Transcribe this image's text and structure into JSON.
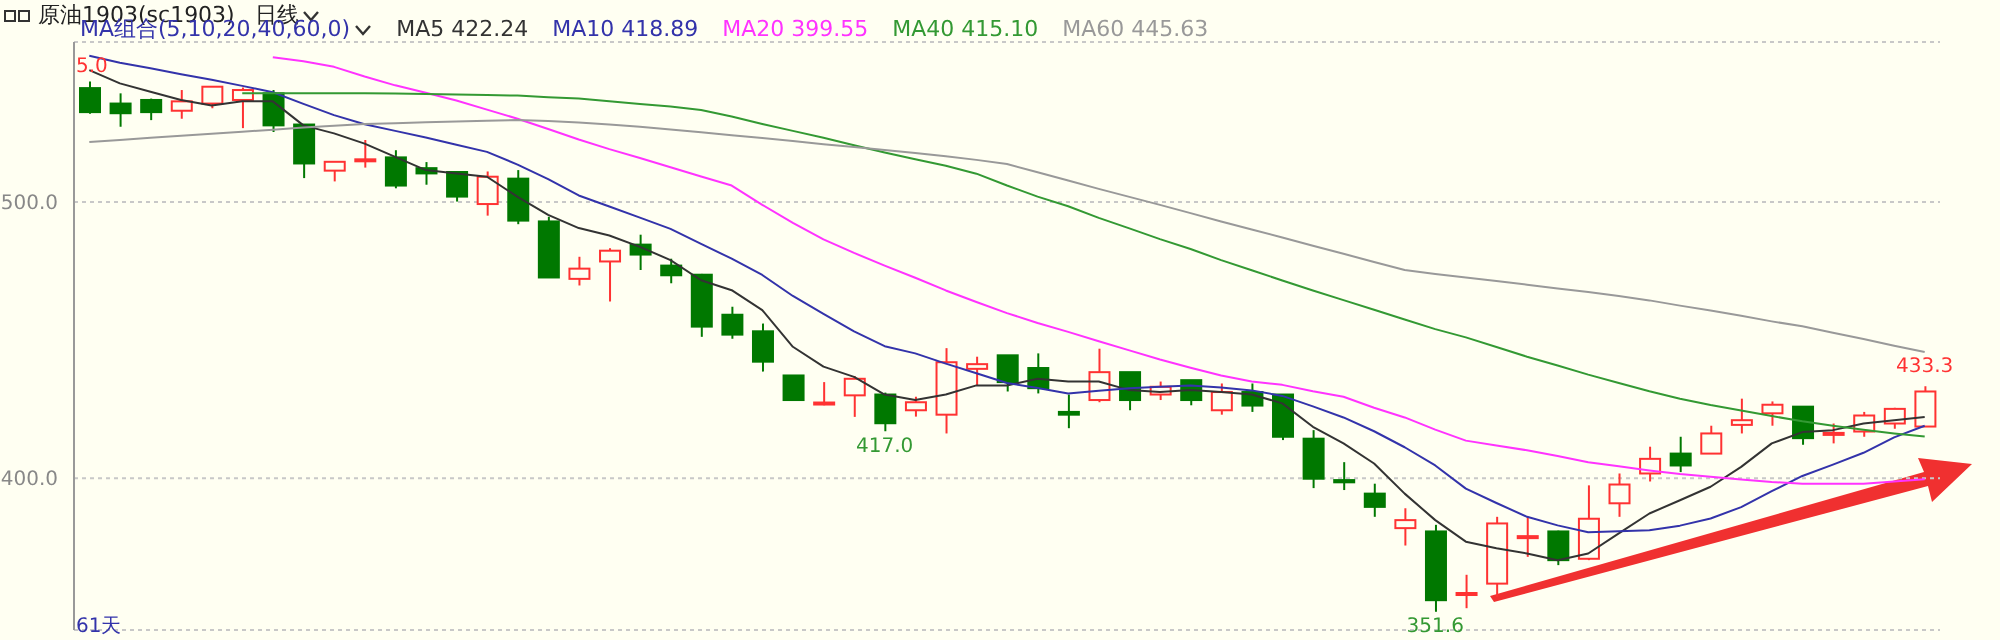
{
  "chart_data": {
    "type": "candlestick",
    "title": "原油1903(sc1903)",
    "subtitle": "日线",
    "legend_title": "MA组合(5,10,20,40,60,0)",
    "categories": [
      null,
      null,
      null,
      null,
      null,
      null,
      null,
      null,
      null,
      null,
      null,
      null,
      null,
      null,
      null,
      null,
      null,
      null,
      null,
      null,
      null,
      null,
      null,
      null,
      null,
      null,
      null,
      null,
      null,
      null,
      null,
      null,
      null,
      null,
      null,
      null,
      null,
      null,
      null,
      null,
      null,
      null,
      null,
      null,
      null,
      null,
      null,
      null,
      null,
      null,
      null,
      null,
      null,
      null,
      null,
      null,
      null,
      null,
      null,
      null,
      null
    ],
    "ohlc": [
      [
        541.3,
        543.7,
        532,
        532.6
      ],
      [
        535.7,
        539.4,
        527.3,
        532.2
      ],
      [
        537,
        537.5,
        529.7,
        532.6
      ],
      [
        533.1,
        540.6,
        530.2,
        536.5
      ],
      [
        535.7,
        542,
        534,
        541.8
      ],
      [
        537,
        541.5,
        526.8,
        540.6
      ],
      [
        539.4,
        540.6,
        525.4,
        527.8
      ],
      [
        528.1,
        528.1,
        508.7,
        514
      ],
      [
        511.4,
        514.6,
        507.5,
        514.6
      ],
      [
        515,
        522.5,
        512.5,
        515.5
      ],
      [
        516.2,
        518.8,
        505,
        506
      ],
      [
        512.3,
        514.5,
        506.3,
        510.4
      ],
      [
        510.9,
        511,
        500.2,
        502
      ],
      [
        499.3,
        511.1,
        495.1,
        509.2
      ],
      [
        508.5,
        511.6,
        492,
        493.3
      ],
      [
        493,
        494.7,
        472.7,
        472.7
      ],
      [
        472.2,
        480.2,
        469.8,
        475.9
      ],
      [
        478.5,
        483.3,
        464,
        482.4
      ],
      [
        484.6,
        488.2,
        475.4,
        481
      ],
      [
        477,
        479.5,
        470.6,
        473.5
      ],
      [
        473.7,
        474,
        451.2,
        454.9
      ],
      [
        459.2,
        462.1,
        450.5,
        452
      ],
      [
        453.2,
        456,
        438.6,
        442.2
      ],
      [
        437.2,
        437.2,
        428.3,
        428.3
      ],
      [
        427.2,
        434.8,
        426.4,
        427.4
      ],
      [
        430,
        437,
        422.2,
        436
      ],
      [
        430.3,
        431,
        417,
        419.9
      ],
      [
        424.6,
        429.5,
        422.3,
        427.5
      ],
      [
        423,
        447.1,
        416.2,
        442
      ],
      [
        439.6,
        444,
        433.6,
        441.3
      ],
      [
        444.5,
        444.5,
        431.4,
        434.8
      ],
      [
        439.9,
        445.2,
        430.7,
        432.6
      ],
      [
        424,
        430.3,
        418.1,
        423
      ],
      [
        428.3,
        446.9,
        427.5,
        438.4
      ],
      [
        438.4,
        438.4,
        424.6,
        428.3
      ],
      [
        430.3,
        435,
        428.3,
        433.1
      ],
      [
        435.5,
        435.5,
        426.4,
        428.3
      ],
      [
        424.6,
        434.3,
        423,
        431.2
      ],
      [
        431.2,
        434.3,
        424,
        426.3
      ],
      [
        430.3,
        430.3,
        413.8,
        415
      ],
      [
        414.3,
        417.4,
        396.4,
        399.8
      ],
      [
        399.3,
        405.8,
        395.7,
        398.5
      ],
      [
        394.4,
        398,
        386,
        389.6
      ],
      [
        381.9,
        389.1,
        375.6,
        384.8
      ],
      [
        380.7,
        383.1,
        351.6,
        355.8
      ],
      [
        358,
        365,
        352.9,
        358.4
      ],
      [
        361.8,
        386,
        357,
        383.6
      ],
      [
        378.6,
        386,
        371.5,
        379
      ],
      [
        380.7,
        381,
        368.5,
        370.3
      ],
      [
        370.8,
        397.4,
        370.3,
        385.3
      ],
      [
        390.9,
        401.7,
        386,
        397.7
      ],
      [
        401.7,
        411.4,
        398.8,
        407
      ],
      [
        408.9,
        415,
        402.2,
        404.6
      ],
      [
        408.9,
        419,
        408.9,
        416.2
      ],
      [
        419.3,
        428.8,
        416.2,
        421
      ],
      [
        423.5,
        427.8,
        419,
        426.6
      ],
      [
        425.9,
        426,
        412.1,
        414.5
      ],
      [
        416,
        419.8,
        412.6,
        416.4
      ],
      [
        416.9,
        424,
        415,
        422.7
      ],
      [
        419.8,
        425.5,
        417.9,
        425.1
      ],
      [
        418.7,
        433.3,
        418.7,
        431.4
      ]
    ],
    "colors": [
      "#007800",
      "#007800",
      "#007800",
      "#ff3232",
      "#ff3232",
      "#ff3232",
      "#007800",
      "#007800",
      "#ff3232",
      "#ff3232",
      "#007800",
      "#007800",
      "#007800",
      "#ff3232",
      "#007800",
      "#007800",
      "#ff3232",
      "#ff3232",
      "#007800",
      "#007800",
      "#007800",
      "#007800",
      "#007800",
      "#007800",
      "#ff3232",
      "#ff3232",
      "#007800",
      "#ff3232",
      "#ff3232",
      "#ff3232",
      "#007800",
      "#007800",
      "#007800",
      "#ff3232",
      "#007800",
      "#ff3232",
      "#007800",
      "#ff3232",
      "#007800",
      "#007800",
      "#007800",
      "#007800",
      "#007800",
      "#ff3232",
      "#007800",
      "#ff3232",
      "#ff3232",
      "#ff3232",
      "#007800",
      "#ff3232",
      "#ff3232",
      "#ff3232",
      "#007800",
      "#ff3232",
      "#ff3232",
      "#ff3232",
      "#007800",
      "#ff3232",
      "#ff3232",
      "#ff3232",
      "#ff3232"
    ],
    "series": [
      {
        "type": "line",
        "name": "MA5 422.24",
        "color": "#333333",
        "values": [
          547.8,
          543,
          540,
          537,
          535,
          536.5,
          536.5,
          527.8,
          524.9,
          521.2,
          516.4,
          511.6,
          510.4,
          509.2,
          501.9,
          495.4,
          490.6,
          487.9,
          483.8,
          479,
          471.7,
          468.1,
          460.9,
          447.6,
          440.4,
          436.7,
          430.3,
          428.3,
          430.3,
          433.6,
          433.6,
          436,
          435,
          435,
          431.9,
          431.2,
          431.9,
          431.2,
          430.3,
          427.1,
          418.6,
          412.6,
          405.3,
          394.4,
          384.8,
          377,
          374.6,
          372.7,
          370.3,
          372.7,
          380,
          387.2,
          392,
          396.9,
          404.1,
          412.6,
          416.7,
          417.4,
          419.8,
          421,
          422.2
        ]
      },
      {
        "type": "line",
        "name": "MA10 418.89",
        "color": "#3333aa",
        "values": [
          553,
          550.5,
          548.5,
          546.3,
          544.3,
          542.1,
          539.8,
          535.6,
          531.5,
          528.2,
          525.8,
          523.4,
          520.8,
          518.2,
          513.6,
          508.3,
          502.4,
          498.4,
          494.4,
          490.3,
          484.9,
          479.5,
          473.6,
          466,
          459.5,
          453.2,
          447.8,
          445.2,
          441.5,
          438,
          434.5,
          432.7,
          430.7,
          431.7,
          432.6,
          433.1,
          433.6,
          432.8,
          431.8,
          429.8,
          426,
          422,
          417,
          411.2,
          404.6,
          396.2,
          391,
          386,
          382.9,
          380.4,
          380.8,
          381.1,
          382.8,
          385.4,
          389.5,
          395.3,
          400.8,
          404.9,
          409.2,
          414.8,
          419
        ]
      },
      {
        "type": "line",
        "name": "MA20 399.55",
        "color": "#ff33ff",
        "values": [
          null,
          null,
          null,
          null,
          null,
          null,
          552.5,
          551,
          549,
          545.5,
          542.3,
          539.6,
          536.8,
          533.5,
          530.2,
          526.5,
          522.7,
          519.2,
          516,
          512.6,
          509.3,
          506,
          499,
          492.5,
          486.5,
          481.6,
          477,
          472.6,
          468,
          463.8,
          459.8,
          456.2,
          453,
          449.6,
          446.3,
          443,
          440,
          437.2,
          435,
          433.8,
          431.5,
          429.5,
          425.5,
          422,
          417.6,
          413.6,
          411.8,
          410.1,
          408,
          405.8,
          404.3,
          402.8,
          401.5,
          400.5,
          399.5,
          398.6,
          398,
          398,
          398,
          398.8,
          399.6
        ]
      },
      {
        "type": "line",
        "name": "MA40 415.10",
        "color": "#339933",
        "values": [
          null,
          null,
          null,
          null,
          null,
          539.4,
          539.4,
          539.4,
          539.4,
          539.4,
          539.3,
          539.2,
          539,
          538.8,
          538.6,
          538,
          537.5,
          536.5,
          535.5,
          534.6,
          533.4,
          531,
          528.3,
          525.8,
          523.3,
          520.6,
          518,
          515.5,
          513.2,
          510.3,
          506,
          502,
          498.5,
          494.3,
          490.5,
          486.6,
          483,
          479,
          475.3,
          471.6,
          468,
          464.5,
          461,
          457.5,
          454,
          451,
          447.5,
          444,
          440.8,
          437.5,
          434.5,
          431.5,
          428.8,
          426.5,
          424.5,
          422.5,
          420.6,
          419,
          417.5,
          416.2,
          415.1
        ]
      },
      {
        "type": "line",
        "name": "MA60 445.63",
        "color": "#999999",
        "values": [
          521.8,
          522.5,
          523.3,
          524,
          524.8,
          525.5,
          526.2,
          527,
          527.7,
          528.3,
          528.6,
          528.9,
          529.2,
          529.5,
          529.7,
          529.4,
          528.8,
          528.1,
          527.3,
          526.3,
          525.3,
          524.2,
          523.2,
          522.1,
          521,
          520,
          518.9,
          517.8,
          516.6,
          515.3,
          513.8,
          510.8,
          507.8,
          504.8,
          501.9,
          499,
          496,
          493,
          490.1,
          487.2,
          484.2,
          481.3,
          478.3,
          475.4,
          474,
          472.7,
          471.4,
          470.1,
          468.7,
          467.4,
          466,
          464.4,
          462.5,
          460.7,
          458.8,
          456.8,
          455,
          452.7,
          450.4,
          448,
          445.7
        ]
      }
    ],
    "ylim": [
      345,
      558
    ],
    "yticks": [
      {
        "value": 400,
        "label": "400.0"
      },
      {
        "value": 500,
        "label": "500.0"
      }
    ],
    "grid": "y",
    "tick_labels": "y",
    "legend": "top left",
    "annotations": [
      "5.0",
      {
        "text": "417.0",
        "y": 417
      },
      {
        "text": "351.6",
        "y": 351.6
      },
      {
        "text": "433.3",
        "y": 433.3
      },
      "61天"
    ]
  }
}
